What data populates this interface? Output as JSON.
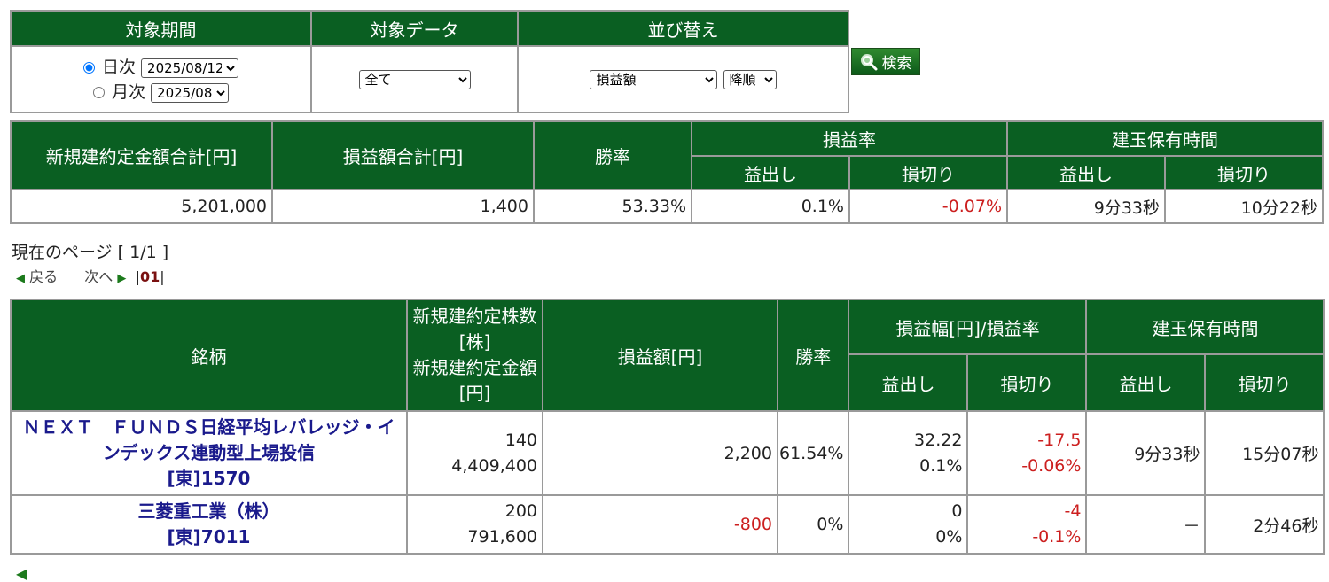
{
  "filter": {
    "period_header": "対象期間",
    "data_header": "対象データ",
    "sort_header": "並び替え",
    "daily_label": "日次",
    "daily_value": "2025/08/12",
    "monthly_label": "月次",
    "monthly_value": "2025/08",
    "data_value": "全て",
    "sort_value": "損益額",
    "order_value": "降順",
    "search_label": "検索"
  },
  "summary": {
    "headers": {
      "total_amount": "新規建約定金額合計[円]",
      "total_pl": "損益額合計[円]",
      "win_rate": "勝率",
      "pl_rate": "損益率",
      "hold_time": "建玉保有時間",
      "profit": "益出し",
      "loss": "損切り"
    },
    "values": {
      "total_amount": "5,201,000",
      "total_pl": "1,400",
      "win_rate": "53.33%",
      "pl_rate_profit": "0.1%",
      "pl_rate_loss": "-0.07%",
      "hold_profit": "9分33秒",
      "hold_loss": "10分22秒"
    }
  },
  "paging": {
    "current_label": "現在のページ [ 1/1 ]",
    "prev": "戻る",
    "next": "次へ",
    "page": "01"
  },
  "detail": {
    "headers": {
      "stock": "銘柄",
      "qty_line1": "新規建約定株数",
      "qty_line2": "[株]",
      "amt_line1": "新規建約定金額",
      "amt_line2": "[円]",
      "pl": "損益額[円]",
      "win_rate": "勝率",
      "range": "損益幅[円]/損益率",
      "hold_time": "建玉保有時間",
      "profit": "益出し",
      "loss": "損切り"
    },
    "rows": [
      {
        "name": "ＮＥＸＴ　ＦＵＮＤＳ日経平均レバレッジ・インデックス連動型上場投信",
        "code": "[東]1570",
        "qty": "140",
        "amount": "4,409,400",
        "pl": "2,200",
        "win_rate": "61.54%",
        "profit_range": "32.22",
        "profit_rate": "0.1%",
        "loss_range": "-17.5",
        "loss_rate": "-0.06%",
        "hold_profit": "9分33秒",
        "hold_loss": "15分07秒"
      },
      {
        "name": "三菱重工業（株）",
        "code": "[東]7011",
        "qty": "200",
        "amount": "791,600",
        "pl": "-800",
        "win_rate": "0%",
        "profit_range": "0",
        "profit_rate": "0%",
        "loss_range": "-4",
        "loss_rate": "-0.1%",
        "hold_profit": "－",
        "hold_loss": "2分46秒"
      }
    ]
  },
  "colors": {
    "header_green": "#0a5f22",
    "negative_red": "#cc1f1f",
    "link_blue": "#1a1a8c"
  }
}
